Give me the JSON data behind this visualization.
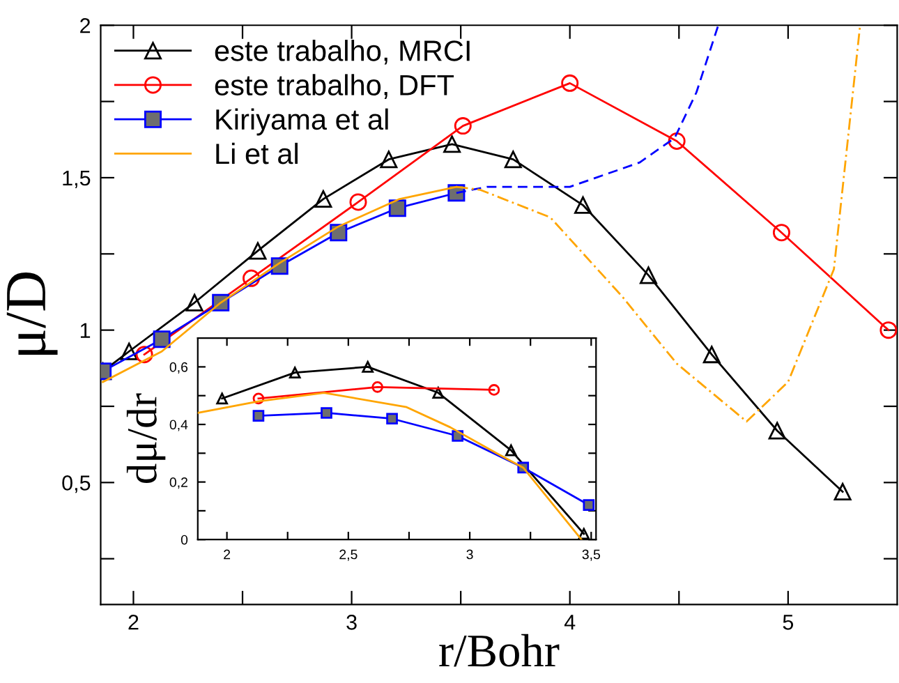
{
  "chart_data": [
    {
      "type": "line",
      "xlabel": "r/Bohr",
      "ylabel": "μ/D",
      "xlim": [
        1.85,
        5.5
      ],
      "ylim": [
        0.1,
        2
      ],
      "xticks": [
        2,
        {
          "value": 2.5,
          "label": null
        },
        3,
        {
          "value": 3.5,
          "label": null
        },
        4,
        {
          "value": 4.5,
          "label": null
        },
        5
      ],
      "yticks": [
        {
          "value": 0.25,
          "label": null
        },
        {
          "value": 0.5,
          "label": "0,5"
        },
        {
          "value": 0.75,
          "label": null
        },
        1,
        {
          "value": 1.25,
          "label": null
        },
        {
          "value": 1.5,
          "label": "1,5"
        },
        {
          "value": 1.75,
          "label": null
        },
        2
      ],
      "legend": "top left",
      "series": [
        {
          "name": "este trabalho, MRCI",
          "color": "#000000",
          "marker": "triangle",
          "x": [
            1.86,
            1.98,
            2.28,
            2.57,
            2.87,
            3.17,
            3.46,
            3.74,
            4.06,
            4.36,
            4.65,
            4.95,
            5.25
          ],
          "values": [
            0.865,
            0.93,
            1.09,
            1.26,
            1.43,
            1.56,
            1.61,
            1.56,
            1.41,
            1.18,
            0.92,
            0.67,
            0.47
          ]
        },
        {
          "name": "este trabalho, DFT",
          "color": "#ff0000",
          "marker": "circle",
          "x": [
            2.05,
            2.54,
            3.03,
            3.51,
            4.0,
            4.49,
            4.97,
            5.46
          ],
          "values": [
            0.92,
            1.17,
            1.42,
            1.67,
            1.81,
            1.62,
            1.32,
            1.0
          ]
        },
        {
          "name": "Kiriyama et al",
          "color": "#0000ff",
          "marker": "square",
          "x": [
            1.86,
            2.13,
            2.4,
            2.67,
            2.94,
            3.21,
            3.48
          ],
          "values": [
            0.865,
            0.97,
            1.09,
            1.21,
            1.32,
            1.4,
            1.45
          ]
        },
        {
          "name": "Li et al",
          "color": "#ffa500",
          "marker": "none",
          "x": [
            1.86,
            2.13,
            2.4,
            2.67,
            2.94,
            3.22,
            3.48
          ],
          "values": [
            0.83,
            0.93,
            1.09,
            1.22,
            1.34,
            1.43,
            1.47
          ]
        },
        {
          "color": "#0000ff",
          "marker": "none",
          "line_style": "dashed",
          "x": [
            3.48,
            3.62,
            4.0,
            4.32,
            4.48,
            4.58,
            4.68
          ],
          "values": [
            1.45,
            1.47,
            1.47,
            1.55,
            1.63,
            1.78,
            2.0
          ]
        },
        {
          "color": "#ffa500",
          "marker": "none",
          "line_style": "dashdot",
          "x": [
            3.48,
            3.59,
            3.91,
            4.24,
            4.49,
            4.81,
            5.0,
            5.21,
            5.33
          ],
          "values": [
            1.47,
            1.46,
            1.37,
            1.11,
            0.89,
            0.7,
            0.83,
            1.2,
            2.0
          ]
        }
      ]
    },
    {
      "type": "line",
      "ylabel": "dμ/dr",
      "xlim": [
        1.88,
        3.52
      ],
      "ylim": [
        0,
        0.7
      ],
      "xticks": [
        2,
        {
          "value": 2.25,
          "label": null
        },
        {
          "value": 2.5,
          "label": "2,5"
        },
        {
          "value": 2.75,
          "label": null
        },
        3,
        {
          "value": 3.25,
          "label": null
        },
        {
          "value": 3.5,
          "label": "3,5"
        }
      ],
      "yticks": [
        0,
        {
          "value": 0.1,
          "label": null
        },
        {
          "value": 0.2,
          "label": "0,2"
        },
        {
          "value": 0.3,
          "label": null
        },
        {
          "value": 0.4,
          "label": "0,4"
        },
        {
          "value": 0.5,
          "label": null
        },
        {
          "value": 0.6,
          "label": "0,6"
        }
      ],
      "series": [
        {
          "color": "#000000",
          "marker": "triangle",
          "x": [
            1.98,
            2.28,
            2.58,
            2.87,
            3.17,
            3.47
          ],
          "values": [
            0.49,
            0.58,
            0.6,
            0.51,
            0.31,
            0.02
          ]
        },
        {
          "color": "#ff0000",
          "marker": "circle",
          "x": [
            2.13,
            2.62,
            3.1
          ],
          "values": [
            0.49,
            0.53,
            0.52
          ]
        },
        {
          "color": "#0000ff",
          "marker": "square",
          "x": [
            2.13,
            2.41,
            2.68,
            2.95,
            3.22,
            3.49
          ],
          "values": [
            0.43,
            0.44,
            0.42,
            0.36,
            0.25,
            0.12
          ]
        },
        {
          "color": "#ffa500",
          "marker": "none",
          "x": [
            1.88,
            2.13,
            2.4,
            2.74,
            2.92,
            3.11,
            3.22,
            3.46
          ],
          "values": [
            0.44,
            0.48,
            0.51,
            0.46,
            0.39,
            0.3,
            0.25,
            0.0
          ]
        }
      ]
    }
  ]
}
